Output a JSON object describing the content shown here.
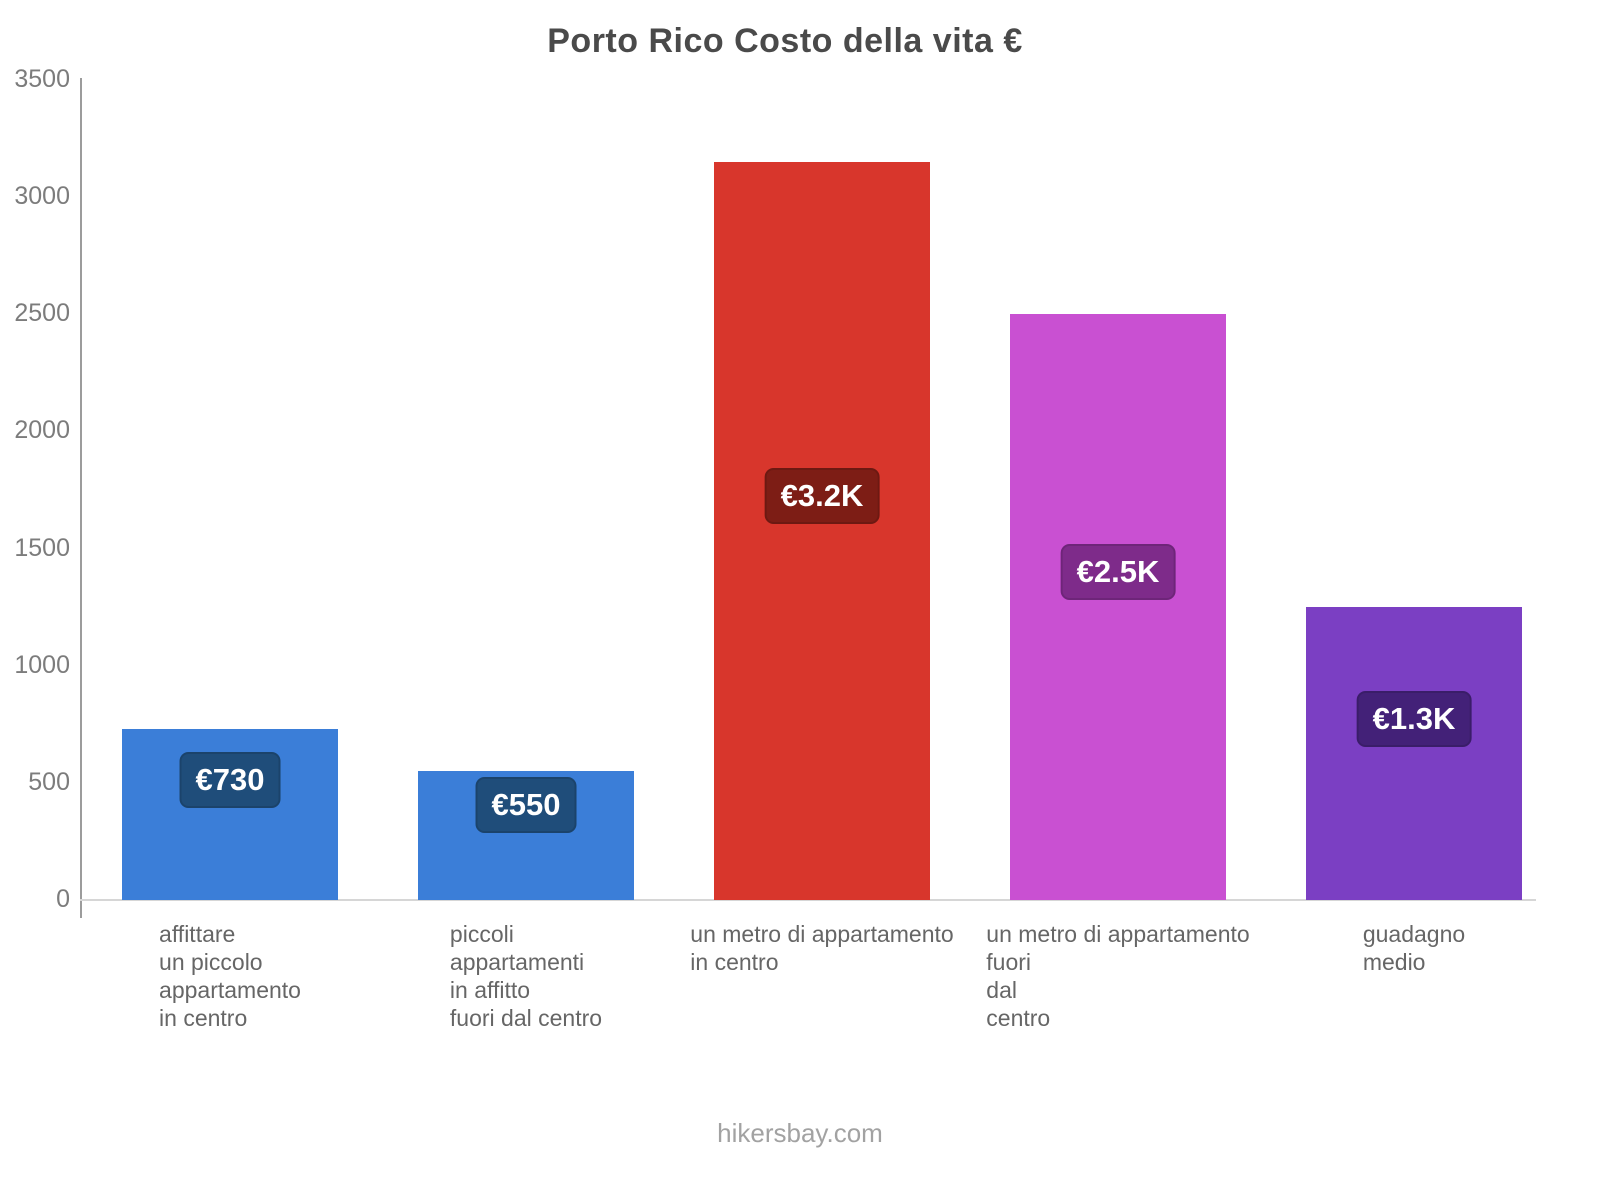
{
  "chart_data": {
    "type": "bar",
    "title": "Porto Rico Costo della vita €",
    "footer": "hikersbay.com",
    "categories": [
      "affittare un piccolo appartamento in centro",
      "piccoli appartamenti in affitto fuori dal centro",
      "un metro di appartamento in centro",
      "un metro di appartamento fuori dal centro",
      "guadagno medio"
    ],
    "category_lines": [
      [
        "affittare",
        "un piccolo",
        "appartamento",
        "in centro"
      ],
      [
        "piccoli",
        "appartamenti",
        "in affitto",
        "fuori dal centro"
      ],
      [
        "un metro di appartamento",
        "in centro"
      ],
      [
        "un metro di appartamento",
        "fuori",
        "dal",
        "centro"
      ],
      [
        "guadagno",
        "medio"
      ]
    ],
    "values": [
      730,
      550,
      3150,
      2500,
      1250
    ],
    "value_labels": [
      "€730",
      "€550",
      "€3.2K",
      "€2.5K",
      "€1.3K"
    ],
    "bar_colors": [
      "#3b7ed8",
      "#3b7ed8",
      "#d8362c",
      "#c950d2",
      "#7b3fc3"
    ],
    "badge_colors": [
      "#1f4d7a",
      "#1f4d7a",
      "#7d1d15",
      "#7e2b8a",
      "#432178"
    ],
    "ylim": [
      0,
      3500
    ],
    "yticks": [
      0,
      500,
      1000,
      1500,
      2000,
      2500,
      3000,
      3500
    ],
    "grid": "off",
    "legend": "none",
    "currency": "€"
  }
}
